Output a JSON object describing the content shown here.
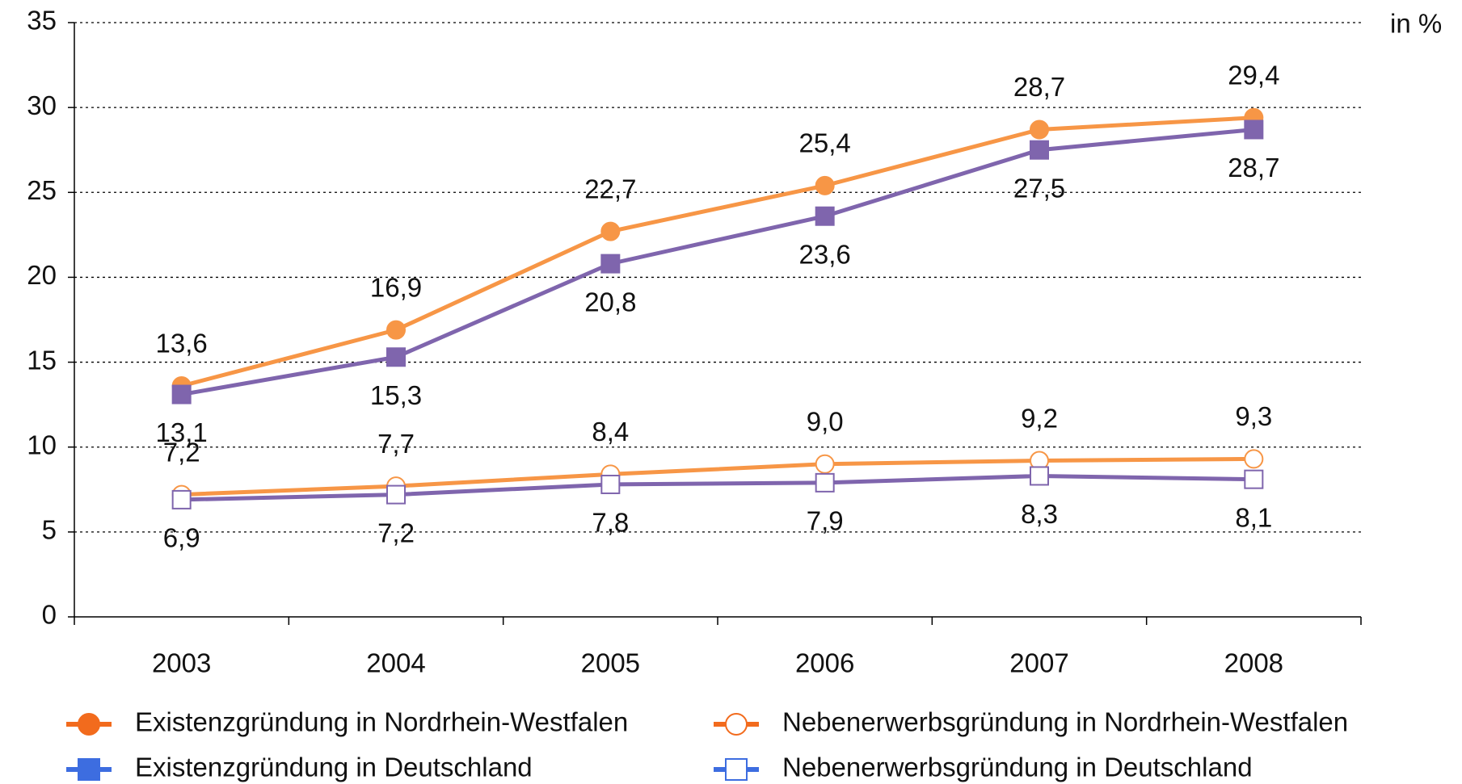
{
  "chart_data": {
    "type": "line",
    "unit_label": "in %",
    "categories": [
      "2003",
      "2004",
      "2005",
      "2006",
      "2007",
      "2008"
    ],
    "ylim": [
      0,
      35
    ],
    "yticks": [
      0,
      5,
      10,
      15,
      20,
      25,
      30,
      35
    ],
    "grid": true,
    "series": [
      {
        "name": "Existenzgründung in Nordrhein-Westfalen",
        "color": "#f79646",
        "legend_color": "#f26b1d",
        "marker": "circle",
        "filled": true,
        "label_position": "above",
        "values": [
          13.6,
          16.9,
          22.7,
          25.4,
          28.7,
          29.4
        ],
        "value_labels": [
          "13,6",
          "16,9",
          "22,7",
          "25,4",
          "28,7",
          "29,4"
        ]
      },
      {
        "name": "Existenzgründung in Deutschland",
        "color": "#7f65ad",
        "legend_color": "#3d6de0",
        "marker": "square",
        "filled": true,
        "label_position": "below",
        "values": [
          13.1,
          15.3,
          20.8,
          23.6,
          27.5,
          28.7
        ],
        "value_labels": [
          "13,1",
          "15,3",
          "20,8",
          "23,6",
          "27,5",
          "28,7"
        ]
      },
      {
        "name": "Nebenerwerbsgründung in Nordrhein-Westfalen",
        "color": "#f79646",
        "legend_color": "#f26b1d",
        "marker": "circle",
        "filled": false,
        "label_position": "above",
        "values": [
          7.2,
          7.7,
          8.4,
          9.0,
          9.2,
          9.3
        ],
        "value_labels": [
          "7,2",
          "7,7",
          "8,4",
          "9,0",
          "9,2",
          "9,3"
        ]
      },
      {
        "name": "Nebenerwerbsgründung in Deutschland",
        "color": "#7f65ad",
        "legend_color": "#3d6de0",
        "marker": "square",
        "filled": false,
        "label_position": "below",
        "values": [
          6.9,
          7.2,
          7.8,
          7.9,
          8.3,
          8.1
        ],
        "value_labels": [
          "6,9",
          "7,2",
          "7,8",
          "7,9",
          "8,3",
          "8,1"
        ]
      }
    ]
  }
}
